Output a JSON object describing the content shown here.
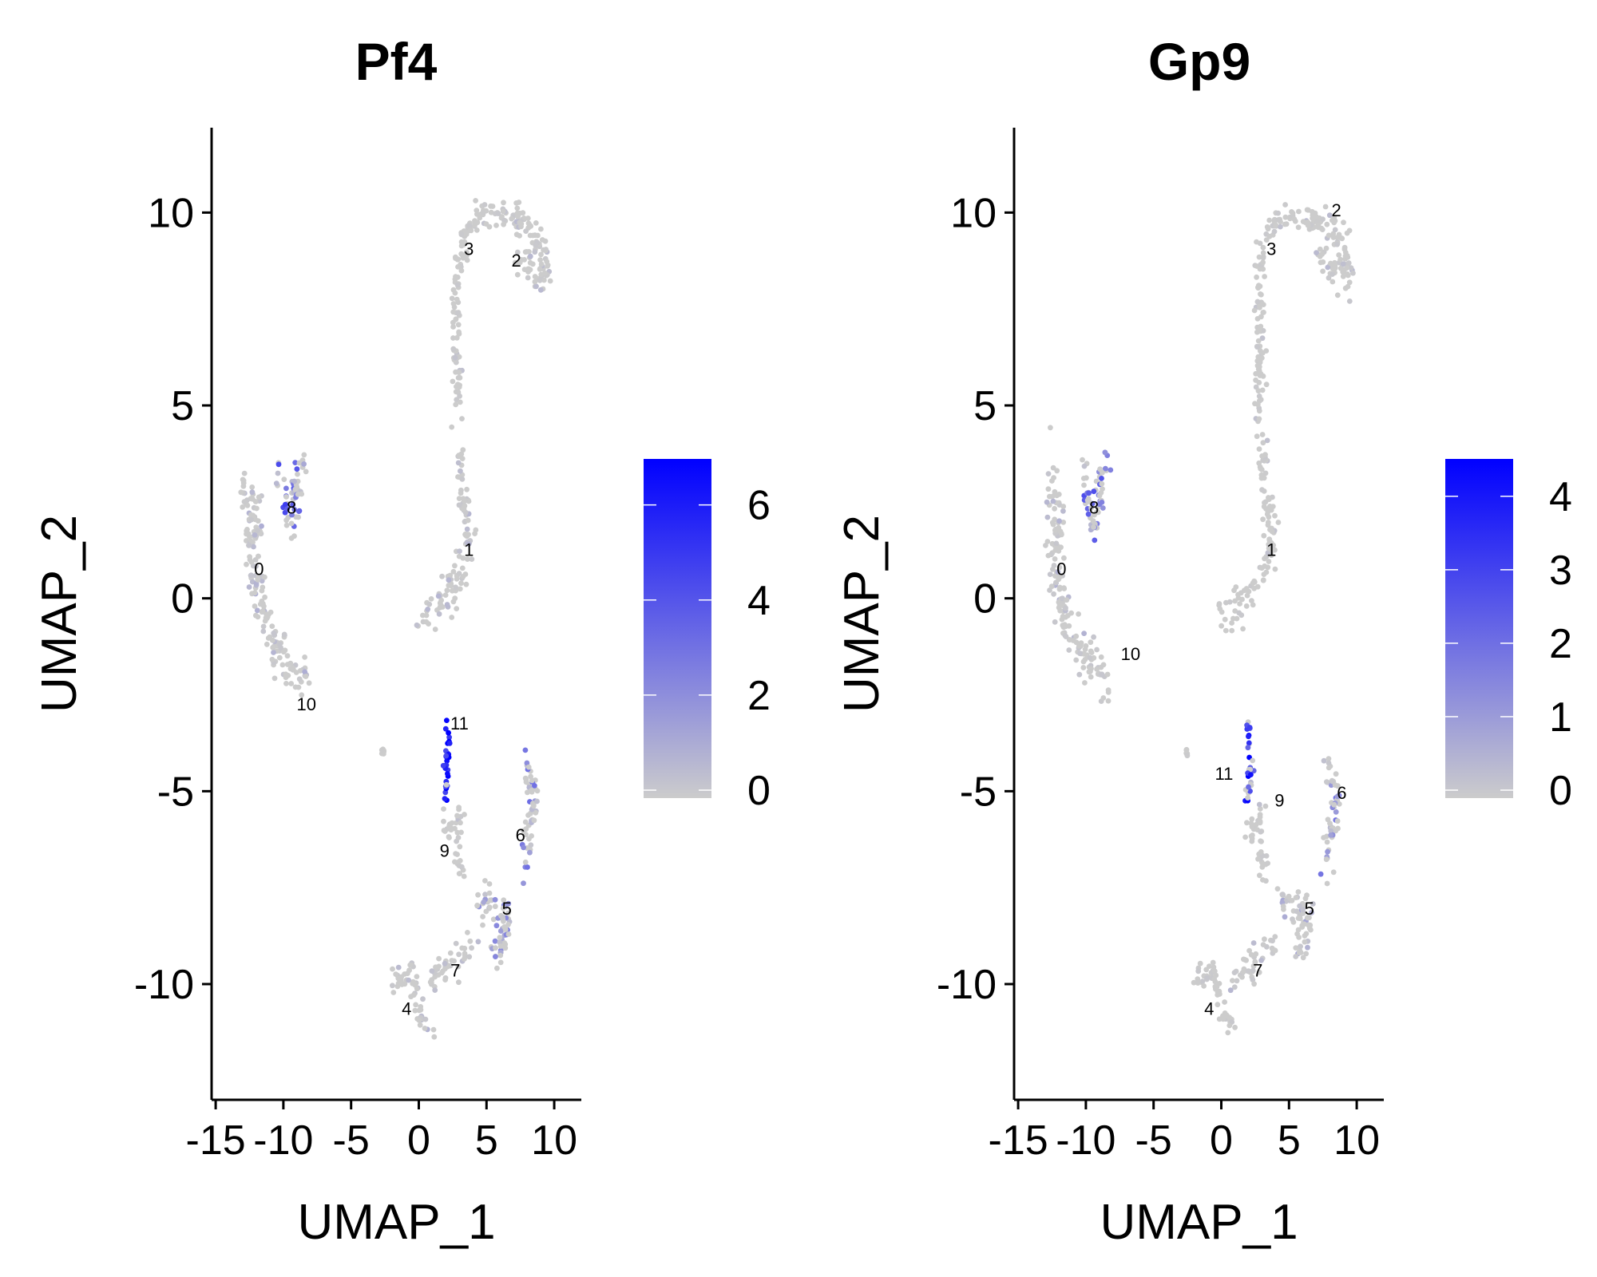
{
  "chart_data": [
    {
      "type": "scatter",
      "title": "Pf4",
      "xlabel": "UMAP_1",
      "ylabel": "UMAP_2",
      "xlim": [
        -15.3,
        12
      ],
      "ylim": [
        -13,
        12.2
      ],
      "xticks": [
        -15,
        -10,
        -5,
        0,
        5,
        10
      ],
      "xtick_labels": [
        "-15",
        "-10",
        "-5",
        "0",
        "5",
        "10"
      ],
      "yticks": [
        -10,
        -5,
        0,
        5,
        10
      ],
      "ytick_labels": [
        "-10",
        "-5",
        "0",
        "5",
        "10"
      ],
      "grid": false,
      "legend": "right",
      "colorbar": {
        "min": 0,
        "max": 6.8,
        "ticks": [
          0,
          2,
          4,
          6
        ],
        "tick_labels": [
          "0",
          "2",
          "4",
          "6"
        ],
        "low_color": "#cccccc",
        "high_color": "#0000ff"
      },
      "cluster_labels": [
        {
          "label": "0",
          "x": -11.8,
          "y": 0.6
        },
        {
          "label": "1",
          "x": 3.7,
          "y": 1.1
        },
        {
          "label": "2",
          "x": 7.2,
          "y": 8.6
        },
        {
          "label": "3",
          "x": 3.7,
          "y": 8.9
        },
        {
          "label": "4",
          "x": -0.9,
          "y": -10.8
        },
        {
          "label": "5",
          "x": 6.5,
          "y": -8.2
        },
        {
          "label": "6",
          "x": 7.5,
          "y": -6.3
        },
        {
          "label": "7",
          "x": 2.7,
          "y": -9.8
        },
        {
          "label": "8",
          "x": -9.4,
          "y": 2.2
        },
        {
          "label": "9",
          "x": 1.9,
          "y": -6.7
        },
        {
          "label": "10",
          "x": -8.3,
          "y": -2.9
        },
        {
          "label": "11",
          "x": 3.0,
          "y": -3.4
        }
      ],
      "clusters": [
        {
          "id": "0",
          "path": [
            [
              -12.8,
              3.1
            ],
            [
              -12.0,
              2.4
            ],
            [
              -12.2,
              1.0
            ],
            [
              -11.4,
              -0.6
            ],
            [
              -10.4,
              -1.4
            ],
            [
              -9.4,
              -1.8
            ],
            [
              -8.4,
              -2.2
            ]
          ],
          "spread": 0.55,
          "n": 170,
          "level": 0.7,
          "high_frac": 0.12
        },
        {
          "id": "8",
          "path": [
            [
              -10.2,
              3.3
            ],
            [
              -9.8,
              2.3
            ],
            [
              -9.4,
              1.7
            ],
            [
              -8.6,
              3.7
            ]
          ],
          "spread": 0.35,
          "n": 60,
          "level": 3.2,
          "high_frac": 0.45
        },
        {
          "id": "1",
          "path": [
            [
              0.0,
              -0.6
            ],
            [
              1.2,
              -0.2
            ],
            [
              2.5,
              0.3
            ],
            [
              3.5,
              0.9
            ],
            [
              3.8,
              1.8
            ],
            [
              3.2,
              2.8
            ],
            [
              3.0,
              4.0
            ]
          ],
          "spread": 0.45,
          "n": 110,
          "level": 0.5,
          "high_frac": 0.08
        },
        {
          "id": "3",
          "path": [
            [
              2.9,
              4.5
            ],
            [
              2.8,
              6.0
            ],
            [
              2.8,
              7.4
            ],
            [
              2.8,
              8.4
            ],
            [
              3.4,
              9.4
            ],
            [
              4.6,
              10.0
            ],
            [
              5.8,
              9.8
            ]
          ],
          "spread": 0.35,
          "n": 120,
          "level": 0.3,
          "high_frac": 0.05
        },
        {
          "id": "2",
          "path": [
            [
              6.0,
              9.9
            ],
            [
              7.5,
              9.8
            ],
            [
              8.6,
              9.4
            ],
            [
              9.4,
              8.8
            ],
            [
              9.5,
              8.3
            ],
            [
              8.2,
              8.5
            ],
            [
              7.2,
              9.0
            ]
          ],
          "spread": 0.4,
          "n": 110,
          "level": 0.4,
          "high_frac": 0.1
        },
        {
          "id": "11",
          "path": [
            [
              2.0,
              -3.3
            ],
            [
              2.1,
              -3.9
            ],
            [
              2.1,
              -4.5
            ],
            [
              2.0,
              -5.2
            ]
          ],
          "spread": 0.2,
          "n": 30,
          "level": 5.0,
          "high_frac": 0.8
        },
        {
          "id": "9",
          "path": [
            [
              1.8,
              -5.8
            ],
            [
              2.4,
              -6.0
            ],
            [
              3.0,
              -5.4
            ],
            [
              2.8,
              -6.6
            ],
            [
              3.3,
              -7.2
            ]
          ],
          "spread": 0.35,
          "n": 40,
          "level": 0.3,
          "high_frac": 0.05
        },
        {
          "id": "6",
          "path": [
            [
              7.7,
              -4.3
            ],
            [
              8.4,
              -4.9
            ],
            [
              8.5,
              -5.6
            ],
            [
              7.9,
              -6.3
            ],
            [
              7.8,
              -7.2
            ]
          ],
          "spread": 0.35,
          "n": 55,
          "level": 2.0,
          "high_frac": 0.3
        },
        {
          "id": "5",
          "path": [
            [
              4.4,
              -7.8
            ],
            [
              5.6,
              -8.0
            ],
            [
              6.4,
              -8.2
            ],
            [
              6.2,
              -8.9
            ],
            [
              5.4,
              -9.2
            ]
          ],
          "spread": 0.45,
          "n": 70,
          "level": 1.5,
          "high_frac": 0.25
        },
        {
          "id": "7",
          "path": [
            [
              0.8,
              -10.0
            ],
            [
              1.8,
              -9.6
            ],
            [
              2.8,
              -9.4
            ],
            [
              4.0,
              -9.0
            ]
          ],
          "spread": 0.35,
          "n": 45,
          "level": 0.4,
          "high_frac": 0.1
        },
        {
          "id": "4",
          "path": [
            [
              -2.0,
              -9.8
            ],
            [
              -1.2,
              -10.0
            ],
            [
              -0.6,
              -9.6
            ],
            [
              0.0,
              -10.6
            ],
            [
              0.6,
              -11.1
            ],
            [
              1.0,
              -11.2
            ]
          ],
          "spread": 0.3,
          "n": 55,
          "level": 0.6,
          "high_frac": 0.1
        },
        {
          "id": "stray",
          "path": [
            [
              -2.7,
              -3.9
            ],
            [
              -2.5,
              -4.0
            ]
          ],
          "spread": 0.1,
          "n": 6,
          "level": 0.1,
          "high_frac": 0.0
        }
      ]
    },
    {
      "type": "scatter",
      "title": "Gp9",
      "xlabel": "UMAP_1",
      "ylabel": "UMAP_2",
      "xlim": [
        -15.3,
        12
      ],
      "ylim": [
        -13,
        12.2
      ],
      "xticks": [
        -15,
        -10,
        -5,
        0,
        5,
        10
      ],
      "xtick_labels": [
        "-15",
        "-10",
        "-5",
        "0",
        "5",
        "10"
      ],
      "yticks": [
        -10,
        -5,
        0,
        5,
        10
      ],
      "ytick_labels": [
        "-10",
        "-5",
        "0",
        "5",
        "10"
      ],
      "grid": false,
      "legend": "right",
      "colorbar": {
        "min": 0,
        "max": 4.4,
        "ticks": [
          0,
          1,
          2,
          3,
          4
        ],
        "tick_labels": [
          "0",
          "1",
          "2",
          "3",
          "4"
        ],
        "low_color": "#cccccc",
        "high_color": "#0000ff"
      },
      "cluster_labels": [
        {
          "label": "0",
          "x": -11.8,
          "y": 0.6
        },
        {
          "label": "1",
          "x": 3.7,
          "y": 1.1
        },
        {
          "label": "2",
          "x": 8.5,
          "y": 9.9
        },
        {
          "label": "3",
          "x": 3.7,
          "y": 8.9
        },
        {
          "label": "4",
          "x": -0.9,
          "y": -10.8
        },
        {
          "label": "5",
          "x": 6.5,
          "y": -8.2
        },
        {
          "label": "6",
          "x": 8.9,
          "y": -5.2
        },
        {
          "label": "7",
          "x": 2.7,
          "y": -9.8
        },
        {
          "label": "8",
          "x": -9.4,
          "y": 2.2
        },
        {
          "label": "9",
          "x": 4.3,
          "y": -5.4
        },
        {
          "label": "10",
          "x": -6.7,
          "y": -1.6
        },
        {
          "label": "11",
          "x": 0.2,
          "y": -4.7
        }
      ],
      "clusters": [
        {
          "id": "0",
          "path": [
            [
              -12.8,
              3.1
            ],
            [
              -12.0,
              2.4
            ],
            [
              -12.2,
              1.0
            ],
            [
              -11.4,
              -0.6
            ],
            [
              -10.4,
              -1.4
            ],
            [
              -9.4,
              -1.8
            ],
            [
              -8.4,
              -2.2
            ]
          ],
          "spread": 0.55,
          "n": 170,
          "level": 0.4,
          "high_frac": 0.06
        },
        {
          "id": "8",
          "path": [
            [
              -10.2,
              3.3
            ],
            [
              -9.8,
              2.3
            ],
            [
              -9.4,
              1.7
            ],
            [
              -8.6,
              3.7
            ]
          ],
          "spread": 0.35,
          "n": 60,
          "level": 1.8,
          "high_frac": 0.4
        },
        {
          "id": "1",
          "path": [
            [
              0.0,
              -0.6
            ],
            [
              1.2,
              -0.2
            ],
            [
              2.5,
              0.3
            ],
            [
              3.5,
              0.9
            ],
            [
              3.8,
              1.8
            ],
            [
              3.2,
              2.8
            ],
            [
              3.0,
              4.0
            ]
          ],
          "spread": 0.45,
          "n": 110,
          "level": 0.2,
          "high_frac": 0.03
        },
        {
          "id": "3",
          "path": [
            [
              2.9,
              4.5
            ],
            [
              2.8,
              6.0
            ],
            [
              2.8,
              7.4
            ],
            [
              2.8,
              8.4
            ],
            [
              3.4,
              9.4
            ],
            [
              4.6,
              10.0
            ],
            [
              5.8,
              9.8
            ]
          ],
          "spread": 0.35,
          "n": 120,
          "level": 0.2,
          "high_frac": 0.03
        },
        {
          "id": "2",
          "path": [
            [
              6.0,
              9.9
            ],
            [
              7.5,
              9.8
            ],
            [
              8.6,
              9.4
            ],
            [
              9.4,
              8.8
            ],
            [
              9.5,
              8.3
            ],
            [
              8.2,
              8.5
            ],
            [
              7.2,
              9.0
            ]
          ],
          "spread": 0.4,
          "n": 110,
          "level": 0.3,
          "high_frac": 0.05
        },
        {
          "id": "11",
          "path": [
            [
              2.0,
              -3.3
            ],
            [
              2.1,
              -3.9
            ],
            [
              2.1,
              -4.5
            ],
            [
              2.0,
              -5.2
            ]
          ],
          "spread": 0.2,
          "n": 30,
          "level": 2.8,
          "high_frac": 0.6
        },
        {
          "id": "9",
          "path": [
            [
              1.8,
              -5.8
            ],
            [
              2.4,
              -6.0
            ],
            [
              3.0,
              -5.4
            ],
            [
              2.8,
              -6.6
            ],
            [
              3.3,
              -7.2
            ]
          ],
          "spread": 0.35,
          "n": 40,
          "level": 0.2,
          "high_frac": 0.03
        },
        {
          "id": "6",
          "path": [
            [
              7.7,
              -4.3
            ],
            [
              8.4,
              -4.9
            ],
            [
              8.5,
              -5.6
            ],
            [
              7.9,
              -6.3
            ],
            [
              7.8,
              -7.2
            ]
          ],
          "spread": 0.35,
          "n": 55,
          "level": 1.2,
          "high_frac": 0.25
        },
        {
          "id": "5",
          "path": [
            [
              4.4,
              -7.8
            ],
            [
              5.6,
              -8.0
            ],
            [
              6.4,
              -8.2
            ],
            [
              6.2,
              -8.9
            ],
            [
              5.4,
              -9.2
            ]
          ],
          "spread": 0.45,
          "n": 70,
          "level": 0.6,
          "high_frac": 0.12
        },
        {
          "id": "7",
          "path": [
            [
              0.8,
              -10.0
            ],
            [
              1.8,
              -9.6
            ],
            [
              2.8,
              -9.4
            ],
            [
              4.0,
              -9.0
            ]
          ],
          "spread": 0.35,
          "n": 45,
          "level": 0.3,
          "high_frac": 0.08
        },
        {
          "id": "4",
          "path": [
            [
              -2.0,
              -9.8
            ],
            [
              -1.2,
              -10.0
            ],
            [
              -0.6,
              -9.6
            ],
            [
              0.0,
              -10.6
            ],
            [
              0.6,
              -11.1
            ],
            [
              1.0,
              -11.2
            ]
          ],
          "spread": 0.3,
          "n": 55,
          "level": 0.3,
          "high_frac": 0.05
        },
        {
          "id": "stray",
          "path": [
            [
              -2.7,
              -3.9
            ],
            [
              -2.5,
              -4.0
            ]
          ],
          "spread": 0.1,
          "n": 6,
          "level": 0.1,
          "high_frac": 0.0
        }
      ]
    }
  ]
}
